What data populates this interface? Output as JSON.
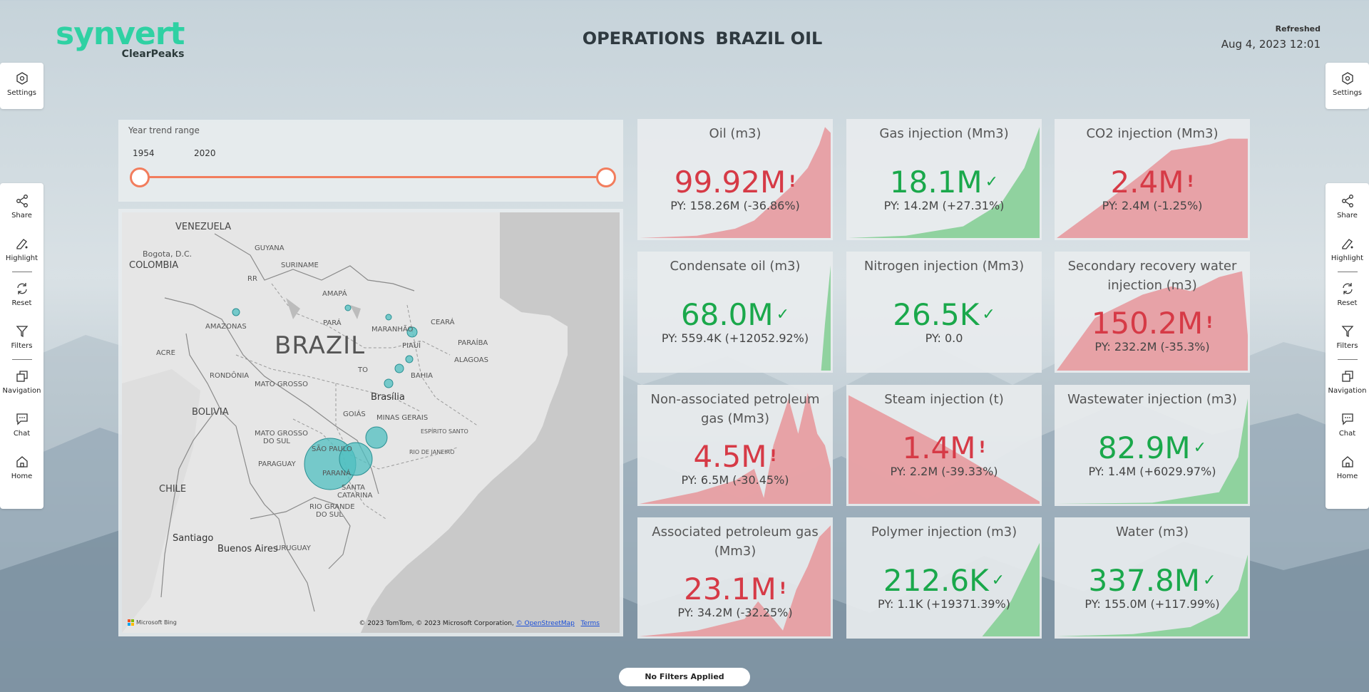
{
  "brand": {
    "name": "synvert",
    "sub": "ClearPeaks"
  },
  "header": {
    "title_part1": "OPERATIONS",
    "title_part2": "BRAZIL OIL",
    "refreshed_label": "Refreshed",
    "refreshed_date": "Aug 4, 2023 12:01"
  },
  "sidebar": {
    "settings": "Settings",
    "share": "Share",
    "highlight": "Highlight",
    "reset": "Reset",
    "filters": "Filters",
    "navigation": "Navigation",
    "chat": "Chat",
    "home": "Home"
  },
  "slicer": {
    "title": "Year trend range",
    "start": "1954",
    "end": "2020",
    "range_fraction": [
      0,
      1
    ]
  },
  "map": {
    "labels": {
      "venezuela": "VENEZUELA",
      "bogota": "Bogota, D.C.",
      "colombia": "COLOMBIA",
      "guyana": "GUYANA",
      "suriname": "SURINAME",
      "rr": "RR",
      "amapa": "AMAPÁ",
      "amazonas": "AMAZONAS",
      "para": "PARÁ",
      "maranhao": "MARANHÃO",
      "ceara": "CEARÁ",
      "acre": "ACRE",
      "piaui": "PIAUÍ",
      "paraiba": "PARAÍBA",
      "alagoas": "ALAGOAS",
      "rondonia": "RONDÔNIA",
      "to": "TO",
      "bahia": "BAHIA",
      "mato_grosso": "MATO GROSSO",
      "brasilia": "Brasília",
      "bolivia": "BOLIVIA",
      "goias": "GOIÁS",
      "minas": "MINAS GERAIS",
      "espirito": "ESPÍRITO SANTO",
      "mgs1": "MATO GROSSO",
      "mgs2": "DO SUL",
      "sao_paulo": "SÃO PAULO",
      "rio": "RIO DE JANEIRO",
      "paraguay": "PARAGUAY",
      "parana": "PARANÁ",
      "chile": "CHILE",
      "santa1": "SANTA",
      "santa2": "CATARINA",
      "rgs1": "RIO GRANDE",
      "rgs2": "DO SUL",
      "santiago": "Santiago",
      "buenos_aires": "Buenos Aires",
      "uruguay": "URUGUAY",
      "brazil": "BRAZIL"
    },
    "bing": "Microsoft Bing",
    "attribution": "© 2023 TomTom, © 2023 Microsoft Corporation, ",
    "osm": "© OpenStreetMap",
    "terms": "Terms"
  },
  "colors": {
    "red": "#d63a46",
    "green": "#1aa84b",
    "red_fill": "#e79a9f",
    "green_fill": "#86cf96",
    "accent": "#f27d5d"
  },
  "kpis": [
    {
      "title": "Oil (m3)",
      "value": "99.92M",
      "status": "bad",
      "py": "PY: 158.26M (-36.86%)"
    },
    {
      "title": "Gas injection (Mm3)",
      "value": "18.1M",
      "status": "good",
      "py": "PY: 14.2M (+27.31%)"
    },
    {
      "title": "CO2 injection (Mm3)",
      "value": "2.4M",
      "status": "bad",
      "py": "PY: 2.4M (-1.25%)"
    },
    {
      "title": "Condensate oil (m3)",
      "value": "68.0M",
      "status": "good",
      "py": "PY: 559.4K (+12052.92%)"
    },
    {
      "title": "Nitrogen injection (Mm3)",
      "value": "26.5K",
      "status": "good",
      "py": "PY: 0.0"
    },
    {
      "title": "Secondary recovery water injection (m3)",
      "value": "150.2M",
      "status": "bad",
      "py": "PY: 232.2M (-35.3%)"
    },
    {
      "title": "Non-associated petroleum gas (Mm3)",
      "value": "4.5M",
      "status": "bad",
      "py": "PY: 6.5M (-30.45%)"
    },
    {
      "title": "Steam injection (t)",
      "value": "1.4M",
      "status": "bad",
      "py": "PY: 2.2M (-39.33%)"
    },
    {
      "title": "Wastewater injection (m3)",
      "value": "82.9M",
      "status": "good",
      "py": "PY: 1.4M (+6029.97%)"
    },
    {
      "title": "Associated petroleum gas (Mm3)",
      "value": "23.1M",
      "status": "bad",
      "py": "PY: 34.2M (-32.25%)"
    },
    {
      "title": "Polymer injection (m3)",
      "value": "212.6K",
      "status": "good",
      "py": "PY: 1.1K (+19371.39%)"
    },
    {
      "title": "Water (m3)",
      "value": "337.8M",
      "status": "good",
      "py": "PY: 155.0M (+117.99%)"
    }
  ],
  "marks": {
    "bad": "!",
    "good": "✓"
  },
  "footer": {
    "filters": "No Filters Applied"
  }
}
